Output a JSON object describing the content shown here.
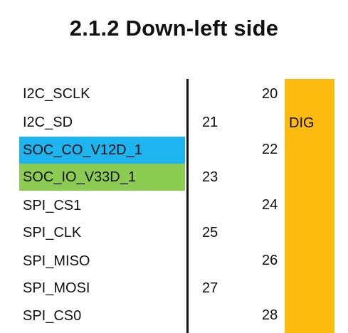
{
  "section_title": "2.1.2 Down-left side",
  "signals": [
    {
      "label": "I2C_SCLK",
      "highlight": "none"
    },
    {
      "label": "I2C_SD",
      "highlight": "none"
    },
    {
      "label": "SOC_CO_V12D_1",
      "highlight": "blue"
    },
    {
      "label": "SOC_IO_V33D_1",
      "highlight": "green"
    },
    {
      "label": "SPI_CS1",
      "highlight": "none"
    },
    {
      "label": "SPI_CLK",
      "highlight": "none"
    },
    {
      "label": "SPI_MISO",
      "highlight": "none"
    },
    {
      "label": "SPI_MOSI",
      "highlight": "none"
    },
    {
      "label": "SPI_CS0",
      "highlight": "none"
    }
  ],
  "pins_odd": [
    "21",
    "23",
    "25",
    "27"
  ],
  "pins_even": [
    "20",
    "22",
    "24",
    "26",
    "28"
  ],
  "power_domain_label": "DIG",
  "colors": {
    "blue_highlight": "#1eb4ef",
    "green_highlight": "#8ccc52",
    "domain_bar": "#fdbb10"
  }
}
